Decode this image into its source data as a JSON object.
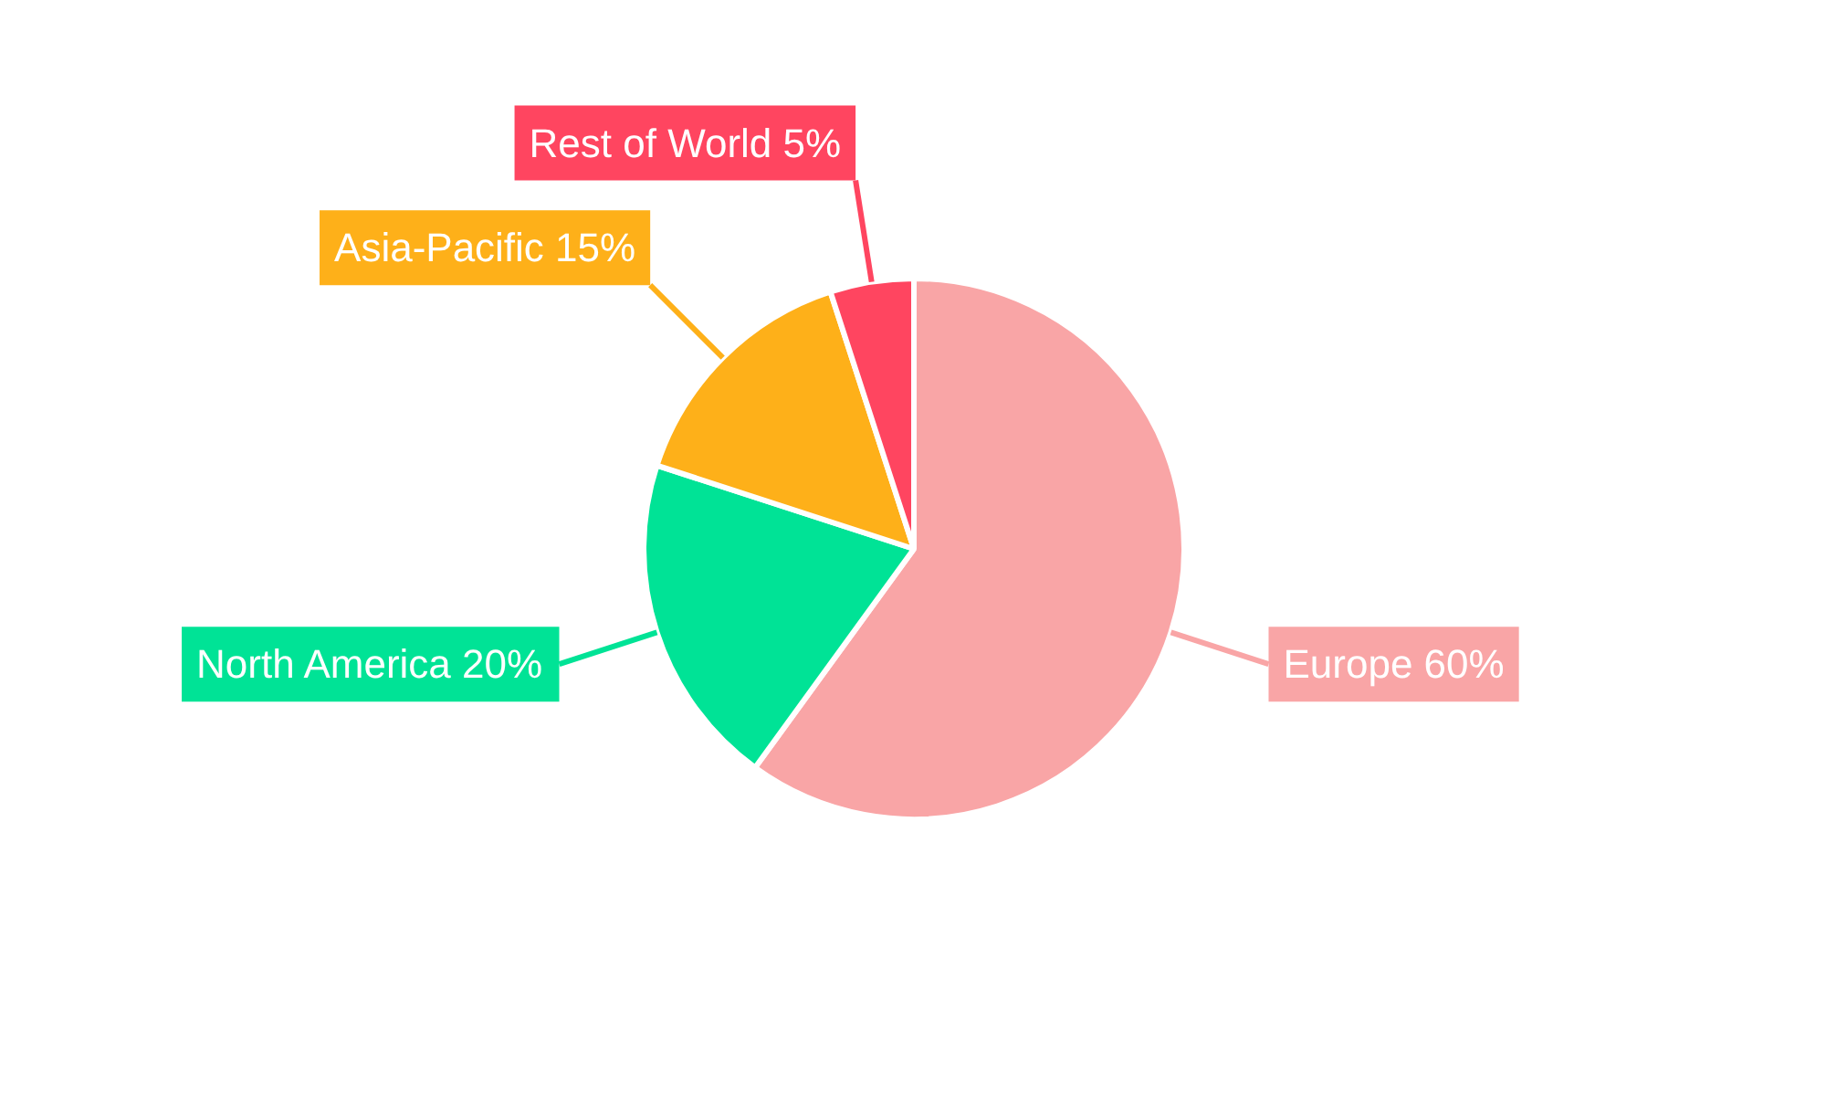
{
  "chart_data": {
    "type": "pie",
    "categories": [
      "Europe",
      "North America",
      "Asia-Pacific",
      "Rest of World"
    ],
    "values": [
      60,
      20,
      15,
      5
    ],
    "colors": [
      "#f9a5a6",
      "#00e396",
      "#feb019",
      "#ff4560"
    ],
    "value_labels": [
      "60%",
      "20%",
      "15%",
      "5%"
    ]
  }
}
